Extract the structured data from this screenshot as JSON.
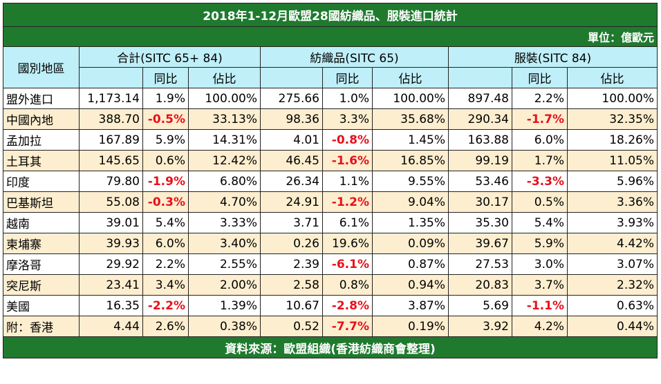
{
  "title": "2018年1-12月歐盟28國紡織品、服裝進口統計",
  "unit": "單位：億歐元",
  "headers": {
    "region": "國別地區",
    "group_total": "合計(SITC 65+ 84)",
    "group_textile": "紡織品(SITC 65)",
    "group_apparel": "服裝(SITC 84)",
    "yoy": "同比",
    "share": "佔比"
  },
  "rows": [
    {
      "name": "盟外進口",
      "t_val": "1,173.14",
      "t_yoy": "1.9%",
      "t_share": "100.00%",
      "x_val": "275.66",
      "x_yoy": "1.0%",
      "x_share": "100.00%",
      "a_val": "897.48",
      "a_yoy": "2.2%",
      "a_share": "100.00%"
    },
    {
      "name": "中國內地",
      "t_val": "388.70",
      "t_yoy": "-0.5%",
      "t_share": "33.13%",
      "x_val": "98.36",
      "x_yoy": "3.3%",
      "x_share": "35.68%",
      "a_val": "290.34",
      "a_yoy": "-1.7%",
      "a_share": "32.35%"
    },
    {
      "name": "孟加拉",
      "t_val": "167.89",
      "t_yoy": "5.9%",
      "t_share": "14.31%",
      "x_val": "4.01",
      "x_yoy": "-0.8%",
      "x_share": "1.45%",
      "a_val": "163.88",
      "a_yoy": "6.0%",
      "a_share": "18.26%"
    },
    {
      "name": "土耳其",
      "t_val": "145.65",
      "t_yoy": "0.6%",
      "t_share": "12.42%",
      "x_val": "46.45",
      "x_yoy": "-1.6%",
      "x_share": "16.85%",
      "a_val": "99.19",
      "a_yoy": "1.7%",
      "a_share": "11.05%"
    },
    {
      "name": "印度",
      "t_val": "79.80",
      "t_yoy": "-1.9%",
      "t_share": "6.80%",
      "x_val": "26.34",
      "x_yoy": "1.1%",
      "x_share": "9.55%",
      "a_val": "53.46",
      "a_yoy": "-3.3%",
      "a_share": "5.96%"
    },
    {
      "name": "巴基斯坦",
      "t_val": "55.08",
      "t_yoy": "-0.3%",
      "t_share": "4.70%",
      "x_val": "24.91",
      "x_yoy": "-1.2%",
      "x_share": "9.04%",
      "a_val": "30.17",
      "a_yoy": "0.5%",
      "a_share": "3.36%"
    },
    {
      "name": "越南",
      "t_val": "39.01",
      "t_yoy": "5.4%",
      "t_share": "3.33%",
      "x_val": "3.71",
      "x_yoy": "6.1%",
      "x_share": "1.35%",
      "a_val": "35.30",
      "a_yoy": "5.4%",
      "a_share": "3.93%"
    },
    {
      "name": "柬埔寨",
      "t_val": "39.93",
      "t_yoy": "6.0%",
      "t_share": "3.40%",
      "x_val": "0.26",
      "x_yoy": "19.6%",
      "x_share": "0.09%",
      "a_val": "39.67",
      "a_yoy": "5.9%",
      "a_share": "4.42%"
    },
    {
      "name": "摩洛哥",
      "t_val": "29.92",
      "t_yoy": "2.2%",
      "t_share": "2.55%",
      "x_val": "2.39",
      "x_yoy": "-6.1%",
      "x_share": "0.87%",
      "a_val": "27.53",
      "a_yoy": "3.0%",
      "a_share": "3.07%"
    },
    {
      "name": "突尼斯",
      "t_val": "23.41",
      "t_yoy": "3.4%",
      "t_share": "2.00%",
      "x_val": "2.58",
      "x_yoy": "0.8%",
      "x_share": "0.94%",
      "a_val": "20.83",
      "a_yoy": "3.7%",
      "a_share": "2.32%"
    },
    {
      "name": "美國",
      "t_val": "16.35",
      "t_yoy": "-2.2%",
      "t_share": "1.39%",
      "x_val": "10.67",
      "x_yoy": "-2.8%",
      "x_share": "3.87%",
      "a_val": "5.69",
      "a_yoy": "-1.1%",
      "a_share": "0.63%"
    },
    {
      "name": "附：香港",
      "t_val": "4.44",
      "t_yoy": "2.6%",
      "t_share": "0.38%",
      "x_val": "0.52",
      "x_yoy": "-7.7%",
      "x_share": "0.19%",
      "a_val": "3.92",
      "a_yoy": "4.2%",
      "a_share": "0.44%"
    }
  ],
  "footer": "資料來源：歐盟組織(香港紡織商會整理)",
  "colors": {
    "header_green": "#1f7a2e",
    "header_cyan": "#bfeff8",
    "row_tint": "#fdeecf",
    "negative": "#e8101a"
  }
}
